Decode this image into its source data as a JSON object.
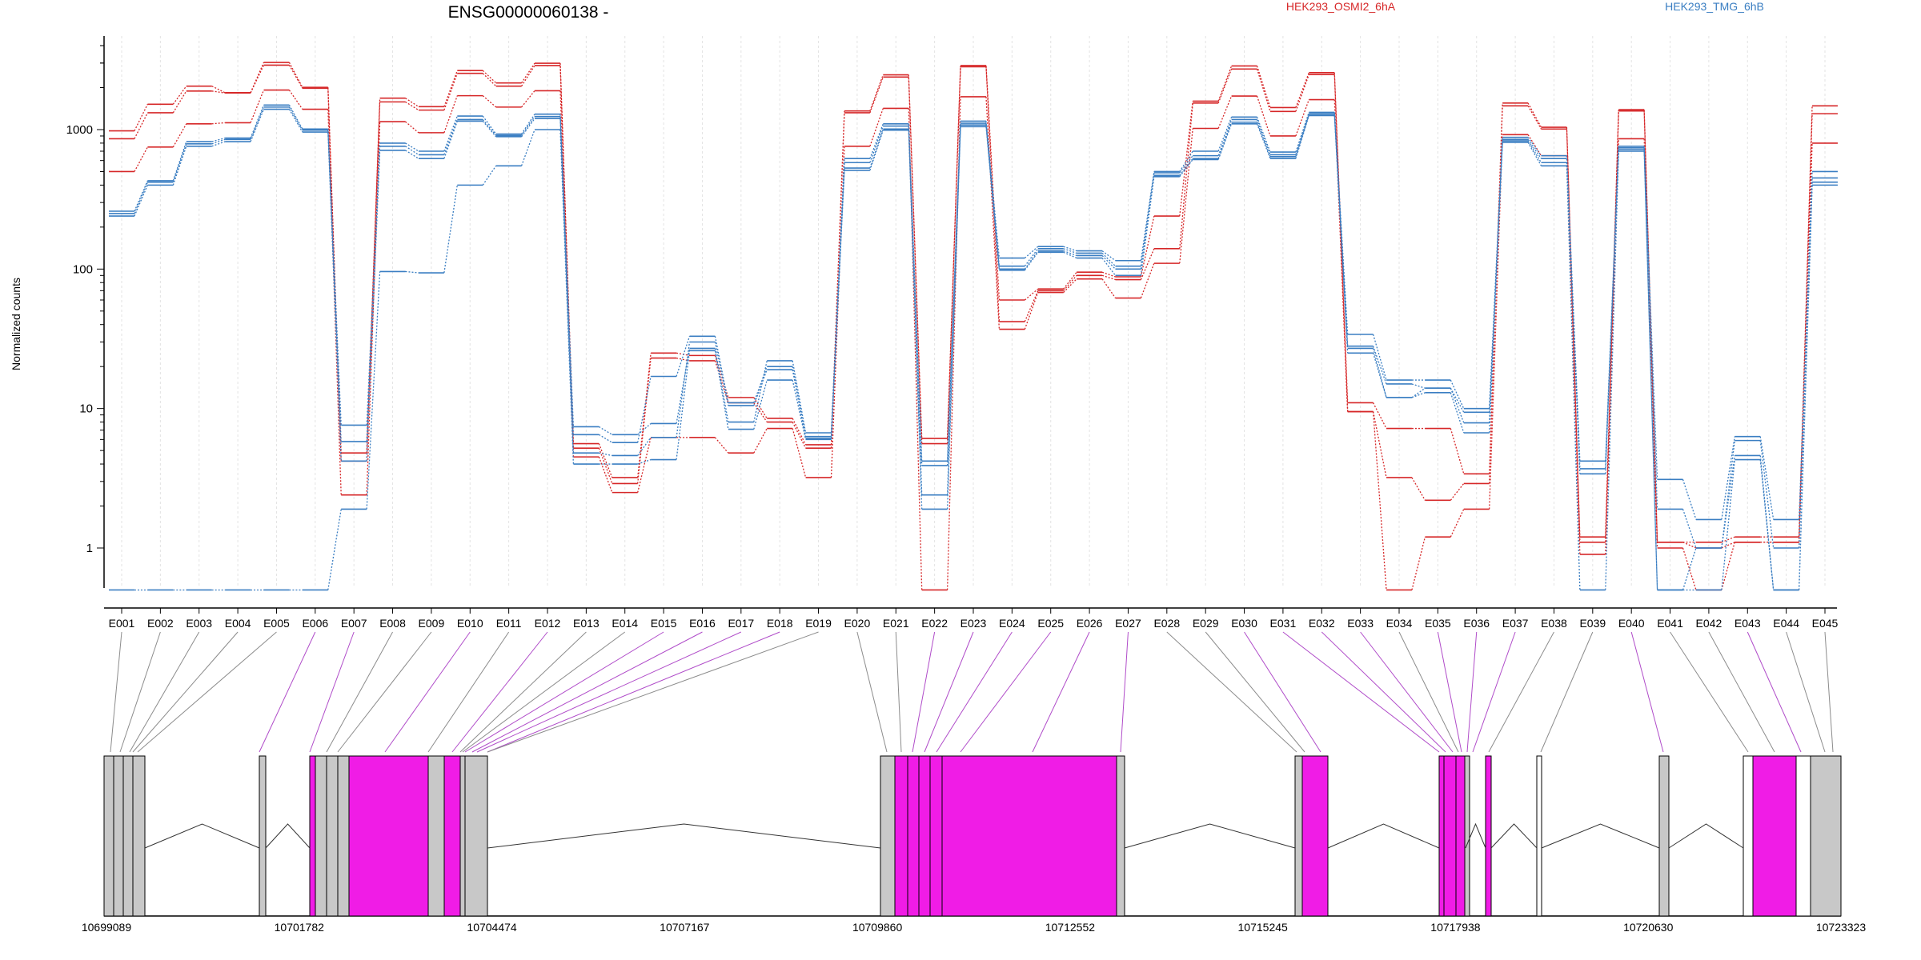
{
  "chart_data": [
    {
      "type": "line",
      "title": "ENSG00000060138 -",
      "ylabel": "Normalized counts",
      "yscale": "log",
      "ylim": [
        0.5,
        4000
      ],
      "yticks": [
        1,
        10,
        100,
        1000
      ],
      "ytick_labels": [
        "1",
        "10",
        "100",
        "1000"
      ],
      "grid": "vertical dotted lines at each exon",
      "legend_position": "top",
      "categories": [
        "E001",
        "E002",
        "E003",
        "E004",
        "E005",
        "E006",
        "E007",
        "E008",
        "E009",
        "E010",
        "E011",
        "E012",
        "E013",
        "E014",
        "E015",
        "E016",
        "E017",
        "E018",
        "E019",
        "E020",
        "E021",
        "E022",
        "E023",
        "E024",
        "E025",
        "E026",
        "E027",
        "E028",
        "E029",
        "E030",
        "E031",
        "E032",
        "E033",
        "E034",
        "E035",
        "E036",
        "E037",
        "E038",
        "E039",
        "E040",
        "E041",
        "E042",
        "E043",
        "E044",
        "E045"
      ],
      "series": [
        {
          "group": "HEK293_OSMI2_6hA",
          "color": "#d62728",
          "values": [
            980,
            1520,
            2050,
            1840,
            3030,
            2010,
            4.8,
            1680,
            1460,
            2650,
            2160,
            2990,
            5.6,
            3.2,
            25,
            24,
            12,
            8.5,
            5.5,
            1360,
            2470,
            6.1,
            2880,
            60,
            72,
            95,
            88,
            240,
            1600,
            2860,
            1440,
            2560,
            11,
            7.2,
            7.2,
            3.4,
            1550,
            1040,
            1.2,
            1390,
            1.1,
            1.1,
            1.2,
            1.2,
            1480
          ]
        },
        {
          "group": "HEK293_OSMI2_6hA",
          "color": "#d62728",
          "values": [
            860,
            1320,
            1890,
            1830,
            2900,
            1980,
            4.2,
            1580,
            1380,
            2530,
            2050,
            2880,
            5.2,
            2.9,
            23,
            22,
            11,
            8,
            5.2,
            1320,
            2380,
            5.6,
            2820,
            42,
            70,
            90,
            84,
            140,
            1550,
            2720,
            1350,
            2480,
            9.5,
            3.2,
            2.2,
            2.9,
            1480,
            1010,
            1.1,
            1360,
            1.1,
            1.0,
            1.1,
            1.1,
            1300
          ]
        },
        {
          "group": "HEK293_OSMI2_6hA",
          "color": "#d62728",
          "values": [
            500,
            750,
            1100,
            1120,
            1920,
            1400,
            2.4,
            1140,
            950,
            1750,
            1450,
            1900,
            4.5,
            2.5,
            6.2,
            6.2,
            4.8,
            7.2,
            3.2,
            760,
            1420,
            0.5,
            1720,
            37,
            68,
            85,
            62,
            110,
            1020,
            1740,
            900,
            1640,
            9.5,
            0.5,
            1.2,
            1.9,
            920,
            650,
            0.9,
            860,
            1.0,
            0.5,
            1.1,
            1.1,
            800
          ]
        },
        {
          "group": "HEK293_TMG_6hB",
          "color": "#3a7ec2",
          "values": [
            260,
            430,
            820,
            870,
            1500,
            1010,
            7.6,
            800,
            700,
            1250,
            930,
            1290,
            7.4,
            6.5,
            7.8,
            27,
            8,
            22,
            6.7,
            620,
            1100,
            4.2,
            1150,
            120,
            145,
            135,
            115,
            500,
            700,
            1230,
            690,
            1330,
            34,
            16,
            16,
            10,
            880,
            650,
            4.2,
            760,
            3.1,
            1.6,
            6.3,
            1.6,
            500
          ]
        },
        {
          "group": "HEK293_TMG_6hB",
          "color": "#3a7ec2",
          "values": [
            250,
            420,
            790,
            850,
            1450,
            990,
            5.8,
            760,
            660,
            1180,
            910,
            1240,
            6.5,
            5.7,
            17,
            33,
            11,
            20,
            6.3,
            580,
            1060,
            3.9,
            1110,
            105,
            140,
            130,
            105,
            490,
            650,
            1180,
            660,
            1300,
            28,
            15,
            14,
            9.4,
            850,
            620,
            3.7,
            740,
            1.9,
            1.0,
            5.9,
            1.0,
            450
          ]
        },
        {
          "group": "HEK293_TMG_6hB",
          "color": "#3a7ec2",
          "values": [
            240,
            400,
            760,
            820,
            1400,
            960,
            4.2,
            710,
            620,
            1150,
            890,
            1200,
            4.8,
            4.6,
            6.2,
            30,
            10.5,
            19,
            6.1,
            530,
            1010,
            2.4,
            1080,
            100,
            135,
            125,
            100,
            470,
            620,
            1130,
            640,
            1270,
            27,
            12,
            14,
            7.9,
            830,
            580,
            3.4,
            720,
            0.5,
            1.0,
            4.6,
            0.5,
            420
          ]
        },
        {
          "group": "HEK293_TMG_6hB",
          "color": "#3a7ec2",
          "values": [
            0.5,
            0.5,
            0.5,
            0.5,
            0.5,
            0.5,
            1.9,
            96,
            94,
            400,
            550,
            1000,
            4.0,
            4.0,
            4.3,
            26,
            7.1,
            16,
            6.0,
            510,
            990,
            1.9,
            1050,
            98,
            132,
            120,
            90,
            460,
            610,
            1100,
            620,
            1260,
            25,
            12,
            13,
            6.7,
            810,
            550,
            0.5,
            700,
            0.5,
            0.5,
            4.3,
            0.5,
            400
          ]
        }
      ]
    },
    {
      "type": "gene_model",
      "x_positions": [
        "10699089",
        "10701782",
        "10704474",
        "10707167",
        "10709860",
        "10712552",
        "10715245",
        "10717938",
        "10720630",
        "10723323"
      ]
    }
  ],
  "colors": {
    "treatment_a": "#d62728",
    "treatment_b": "#3a7ec2",
    "exon_tested": "#f01ce6",
    "exon_other": "#c8c8c8",
    "connector_tested": "#b04cc9",
    "connector_other": "#8c8c8c"
  }
}
